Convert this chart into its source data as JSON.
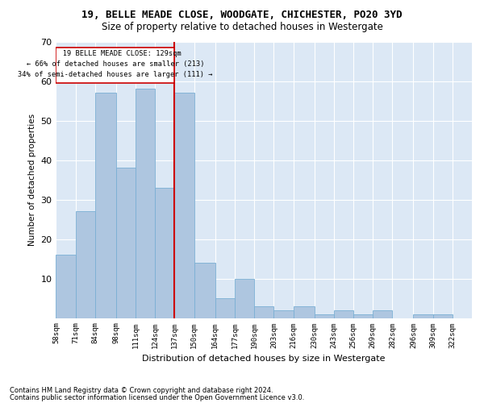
{
  "title1": "19, BELLE MEADE CLOSE, WOODGATE, CHICHESTER, PO20 3YD",
  "title2": "Size of property relative to detached houses in Westergate",
  "xlabel": "Distribution of detached houses by size in Westergate",
  "ylabel": "Number of detached properties",
  "footnote1": "Contains HM Land Registry data © Crown copyright and database right 2024.",
  "footnote2": "Contains public sector information licensed under the Open Government Licence v3.0.",
  "annotation_line1": "   19 BELLE MEADE CLOSE: 129sqm",
  "annotation_line2": "← 66% of detached houses are smaller (213)",
  "annotation_line3": "34% of semi-detached houses are larger (111) →",
  "property_size": 129,
  "bar_left_edges": [
    58,
    71,
    84,
    98,
    111,
    124,
    137,
    150,
    164,
    177,
    190,
    203,
    216,
    230,
    243,
    256,
    269,
    282,
    296,
    309
  ],
  "bar_heights": [
    16,
    27,
    57,
    38,
    58,
    33,
    57,
    14,
    5,
    10,
    3,
    2,
    3,
    1,
    2,
    1,
    2,
    0,
    1,
    1
  ],
  "bar_widths": [
    13,
    13,
    14,
    13,
    13,
    13,
    13,
    14,
    13,
    13,
    13,
    13,
    14,
    13,
    13,
    13,
    13,
    14,
    13,
    13
  ],
  "tick_labels": [
    "58sqm",
    "71sqm",
    "84sqm",
    "98sqm",
    "111sqm",
    "124sqm",
    "137sqm",
    "150sqm",
    "164sqm",
    "177sqm",
    "190sqm",
    "203sqm",
    "216sqm",
    "230sqm",
    "243sqm",
    "256sqm",
    "269sqm",
    "282sqm",
    "296sqm",
    "309sqm",
    "322sqm"
  ],
  "bar_color": "#aec6e0",
  "bar_edge_color": "#7aafd4",
  "bg_color": "#dce8f5",
  "grid_color": "#ffffff",
  "vline_color": "#cc0000",
  "annotation_box_color": "#cc0000",
  "ylim": [
    0,
    70
  ],
  "yticks": [
    0,
    10,
    20,
    30,
    40,
    50,
    60,
    70
  ]
}
